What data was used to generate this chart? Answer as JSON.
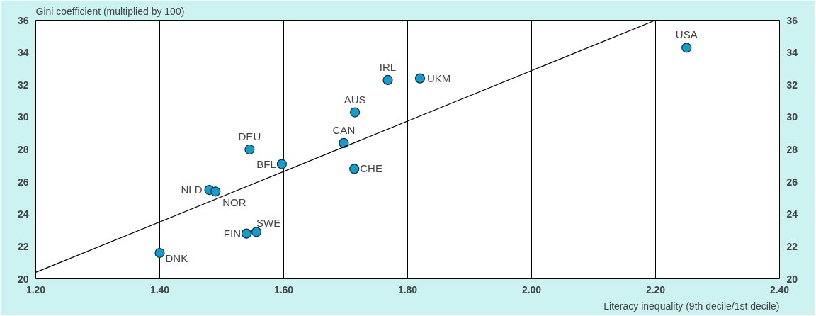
{
  "chart_data": {
    "type": "scatter",
    "xlabel": "Literacy inequality (9th decile/1st decile)",
    "ylabel": "Gini coefficient (multiplied by 100)",
    "x": [
      1.4,
      1.54,
      1.556,
      1.48,
      1.49,
      1.597,
      1.545,
      1.697,
      1.714,
      1.715,
      1.768,
      1.82,
      2.25
    ],
    "series": [
      {
        "color": "#1a9ac9",
        "values": [
          21.6,
          22.8,
          22.9,
          25.5,
          25.4,
          27.1,
          28.0,
          28.4,
          26.8,
          30.3,
          32.3,
          32.4,
          34.3
        ]
      },
      {
        "type": "line",
        "marker": "none",
        "color": "#000000",
        "x": [
          1.2,
          2.2
        ],
        "values": [
          20.4,
          36.0
        ]
      }
    ],
    "annotations": [
      {
        "text": "DNK",
        "x": 1.4,
        "y": 21.6
      },
      {
        "text": "FIN",
        "x": 1.54,
        "y": 22.8
      },
      {
        "text": "SWE",
        "x": 1.556,
        "y": 22.9
      },
      {
        "text": "NLD",
        "x": 1.48,
        "y": 25.5
      },
      {
        "text": "NOR",
        "x": 1.49,
        "y": 25.4
      },
      {
        "text": "BFL",
        "x": 1.597,
        "y": 27.1
      },
      {
        "text": "DEU",
        "x": 1.545,
        "y": 28.0
      },
      {
        "text": "CAN",
        "x": 1.697,
        "y": 28.4
      },
      {
        "text": "CHE",
        "x": 1.714,
        "y": 26.8
      },
      {
        "text": "AUS",
        "x": 1.715,
        "y": 30.3
      },
      {
        "text": "IRL",
        "x": 1.768,
        "y": 32.3
      },
      {
        "text": "UKM",
        "x": 1.82,
        "y": 32.4
      },
      {
        "text": "USA",
        "x": 2.25,
        "y": 34.3
      }
    ],
    "xlim": [
      1.2,
      2.4
    ],
    "xticks": [
      {
        "value": 1.2,
        "label": "1.20"
      },
      {
        "value": 1.4,
        "label": "1.40"
      },
      {
        "value": 1.6,
        "label": "1.60"
      },
      {
        "value": 1.8,
        "label": "1.80"
      },
      {
        "value": 2.0,
        "label": "2.00"
      },
      {
        "value": 2.2,
        "label": "2.20"
      },
      {
        "value": 2.4,
        "label": "2.40"
      }
    ],
    "ylim": [
      20,
      36
    ],
    "yticks": [
      20,
      22,
      24,
      26,
      28,
      30,
      32,
      34,
      36
    ],
    "y2lim": [
      20,
      36
    ],
    "y2ticks": [
      20,
      22,
      24,
      26,
      28,
      30,
      32,
      34,
      36
    ],
    "grid": "x",
    "marker": "circle"
  }
}
